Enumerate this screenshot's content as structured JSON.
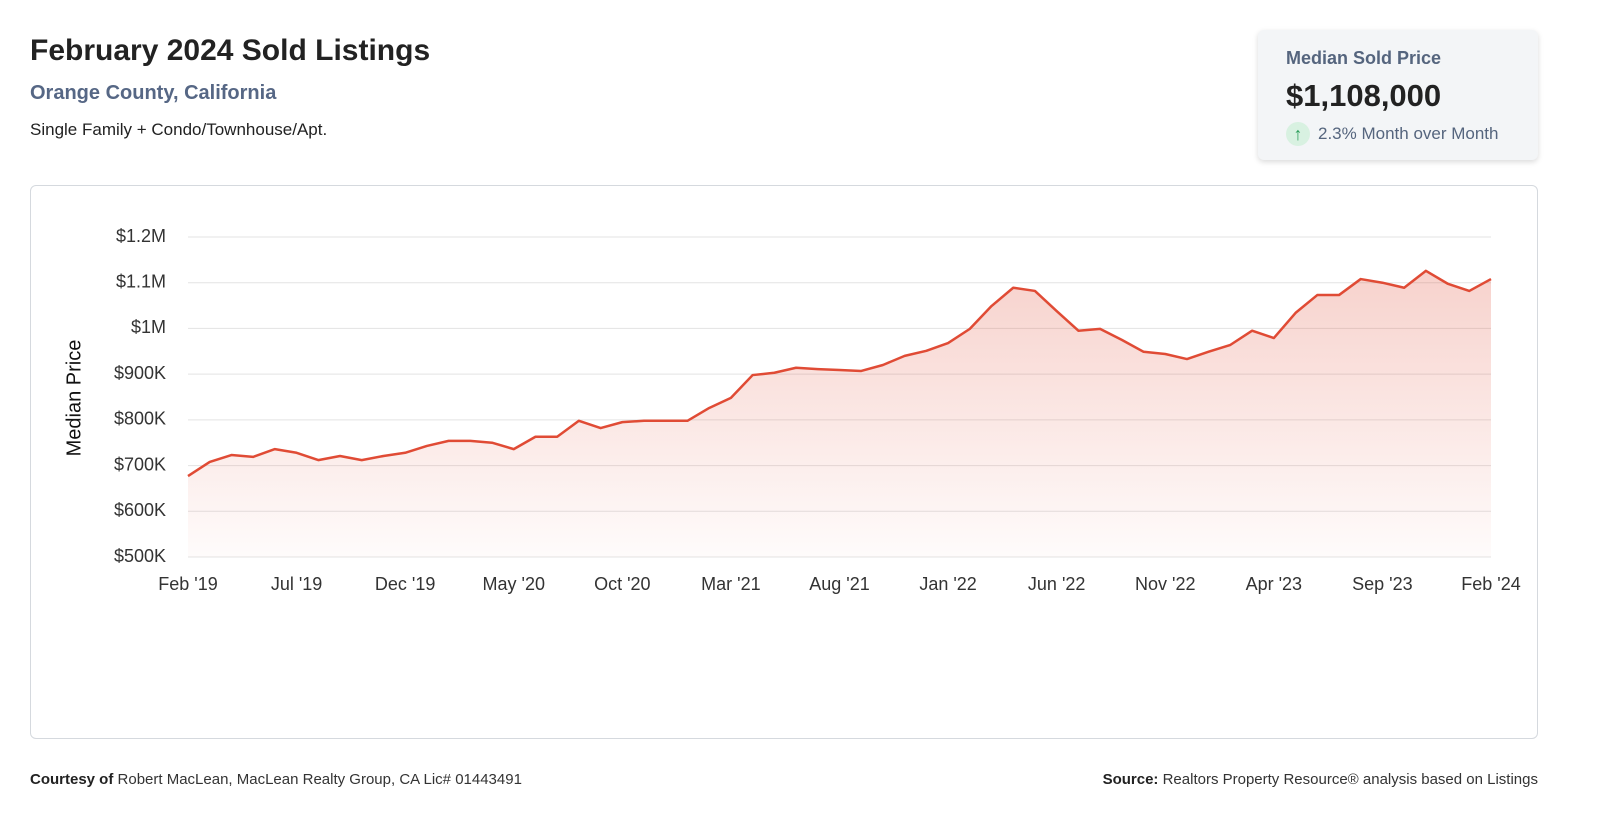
{
  "header": {
    "title": "February 2024 Sold Listings",
    "subtitle": "Orange County, California",
    "description": "Single Family + Condo/Townhouse/Apt."
  },
  "kpi": {
    "label": "Median Sold Price",
    "value": "$1,108,000",
    "change": "2.3% Month over Month"
  },
  "chart_data": {
    "type": "line",
    "y_label": "Median Price",
    "color": "#e04b35",
    "area": true,
    "grid": true,
    "categories": [
      "Feb '19",
      null,
      null,
      null,
      null,
      "Jul '19",
      null,
      null,
      null,
      null,
      "Dec '19",
      null,
      null,
      null,
      null,
      "May '20",
      null,
      null,
      null,
      null,
      "Oct '20",
      null,
      null,
      null,
      null,
      "Mar '21",
      null,
      null,
      null,
      null,
      "Aug '21",
      null,
      null,
      null,
      null,
      "Jan '22",
      null,
      null,
      null,
      null,
      "Jun '22",
      null,
      null,
      null,
      null,
      "Nov '22",
      null,
      null,
      null,
      null,
      "Apr '23",
      null,
      null,
      null,
      null,
      "Sep '23",
      null,
      null,
      null,
      null,
      "Feb '24"
    ],
    "values": [
      677000,
      708000,
      723000,
      719000,
      736000,
      728000,
      712000,
      721000,
      712000,
      721000,
      728000,
      743000,
      754000,
      754000,
      750000,
      736000,
      763000,
      763000,
      798000,
      782000,
      795000,
      798000,
      798000,
      798000,
      826000,
      848000,
      898000,
      903000,
      914000,
      911000,
      909000,
      907000,
      920000,
      940000,
      951000,
      968000,
      999000,
      1049000,
      1089000,
      1082000,
      1038000,
      995000,
      999000,
      975000,
      949000,
      944000,
      933000,
      949000,
      964000,
      995000,
      979000,
      1034000,
      1073000,
      1073000,
      1108000,
      1100000,
      1089000,
      1126000,
      1098000,
      1082000,
      1108000
    ],
    "ylim": [
      500000,
      1200000
    ],
    "yticks": [
      {
        "value": 500000,
        "label": "$500K"
      },
      {
        "value": 600000,
        "label": "$600K"
      },
      {
        "value": 700000,
        "label": "$700K"
      },
      {
        "value": 800000,
        "label": "$800K"
      },
      {
        "value": 900000,
        "label": "$900K"
      },
      {
        "value": 1000000,
        "label": "$1M"
      },
      {
        "value": 1100000,
        "label": "$1.1M"
      },
      {
        "value": 1200000,
        "label": "$1.2M"
      }
    ]
  },
  "footer": {
    "courtesy_label": "Courtesy of",
    "courtesy": "Robert MacLean, MacLean Realty Group, CA Lic# 01443491",
    "source_label": "Source:",
    "source": "Realtors Property Resource® analysis based on Listings"
  }
}
